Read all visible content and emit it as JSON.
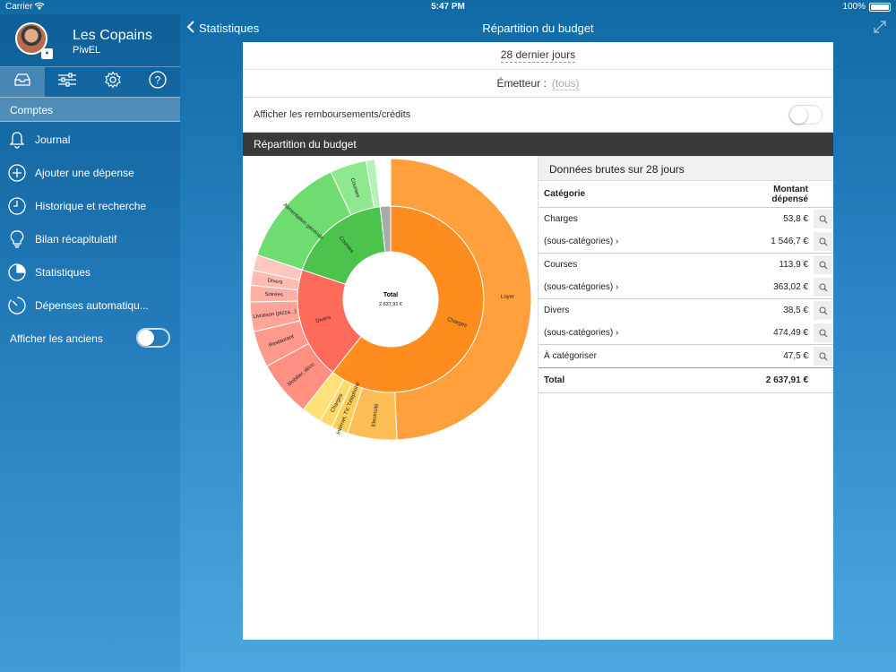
{
  "status": {
    "carrier": "Carrier",
    "time": "5:47 PM",
    "battery": "100%"
  },
  "sidebar": {
    "account_name": "Les Copains",
    "user": "PiwEL",
    "section_title": "Comptes",
    "items": [
      {
        "label": "Journal",
        "icon": "bell-icon"
      },
      {
        "label": "Ajouter une dépense",
        "icon": "plus-circle-icon"
      },
      {
        "label": "Historique et recherche",
        "icon": "clock-icon"
      },
      {
        "label": "Bilan récapitulatif",
        "icon": "lightbulb-icon"
      },
      {
        "label": "Statistiques",
        "icon": "pie-chart-icon"
      },
      {
        "label": "Dépenses automatiqu...",
        "icon": "timer-icon"
      }
    ],
    "show_old_label": "Afficher les anciens"
  },
  "navbar": {
    "back_label": "Statistiques",
    "title": "Répartition du budget"
  },
  "filters": {
    "period": "28 dernier jours",
    "issuer_label": "Émetteur :",
    "issuer_value": "(tous)",
    "refunds_label": "Afficher les remboursements/crédits"
  },
  "section_title": "Répartition du budget",
  "chart_data": {
    "type": "sunburst",
    "center": {
      "label": "Total",
      "value": "2 637,91 €"
    },
    "inner": [
      {
        "name": "Charges",
        "value": 1600.5,
        "color": "#ff8c1f"
      },
      {
        "name": "Divers",
        "value": 512.99,
        "color": "#ff6b5b"
      },
      {
        "name": "Courses",
        "value": 476.92,
        "color": "#4cc34c"
      },
      {
        "name": "",
        "value": 47.5,
        "color": "#aaaaaa"
      }
    ],
    "outer": [
      {
        "name": "Loyer",
        "parent": "Charges",
        "value": 1300,
        "color": "#ffa03c"
      },
      {
        "name": "Electricité",
        "parent": "Charges",
        "value": 150,
        "color": "#ffbe55"
      },
      {
        "name": "Internet, TV, Téléphone",
        "parent": "Charges",
        "value": 50,
        "color": "#ffcf5c"
      },
      {
        "name": "Charges",
        "parent": "Charges",
        "value": 40,
        "color": "#ffd96a"
      },
      {
        "name": "",
        "parent": "Charges",
        "value": 60.5,
        "color": "#ffe07a"
      },
      {
        "name": "Mobilier, déco",
        "parent": "Divers",
        "value": 170,
        "color": "#ff8f80"
      },
      {
        "name": "Restaurant",
        "parent": "Divers",
        "value": 110,
        "color": "#ff998b"
      },
      {
        "name": "Livraison (pizza...)",
        "parent": "Divers",
        "value": 90,
        "color": "#ffa597"
      },
      {
        "name": "Soirées",
        "parent": "Divers",
        "value": 50,
        "color": "#ffb0a4"
      },
      {
        "name": "Divers",
        "parent": "Divers",
        "value": 45,
        "color": "#ffbdb2"
      },
      {
        "name": "",
        "parent": "Divers",
        "value": 47.99,
        "color": "#ffc7bd"
      },
      {
        "name": "Alimentation générale",
        "parent": "Courses",
        "value": 340,
        "color": "#6fdc6f"
      },
      {
        "name": "Courses",
        "parent": "Courses",
        "value": 110,
        "color": "#8ee88e"
      },
      {
        "name": "",
        "parent": "Courses",
        "value": 26.92,
        "color": "#b4f3b4"
      }
    ]
  },
  "raw": {
    "title": "Données brutes sur 28 jours",
    "col_category": "Catégorie",
    "col_amount": "Montant dépensé",
    "groups": [
      {
        "rows": [
          {
            "label": "Charges",
            "amount": "53,8 €"
          },
          {
            "label": "(sous-catégories) ›",
            "amount": "1 546,7 €"
          }
        ]
      },
      {
        "rows": [
          {
            "label": "Courses",
            "amount": "113,9 €"
          },
          {
            "label": "(sous-catégories) ›",
            "amount": "363,02 €"
          }
        ]
      },
      {
        "rows": [
          {
            "label": "Divers",
            "amount": "38,5 €"
          },
          {
            "label": "(sous-catégories) ›",
            "amount": "474,49 €"
          }
        ]
      },
      {
        "rows": [
          {
            "label": "À catégoriser",
            "amount": "47,5 €"
          }
        ]
      }
    ],
    "total_label": "Total",
    "total_amount": "2 637,91 €"
  }
}
